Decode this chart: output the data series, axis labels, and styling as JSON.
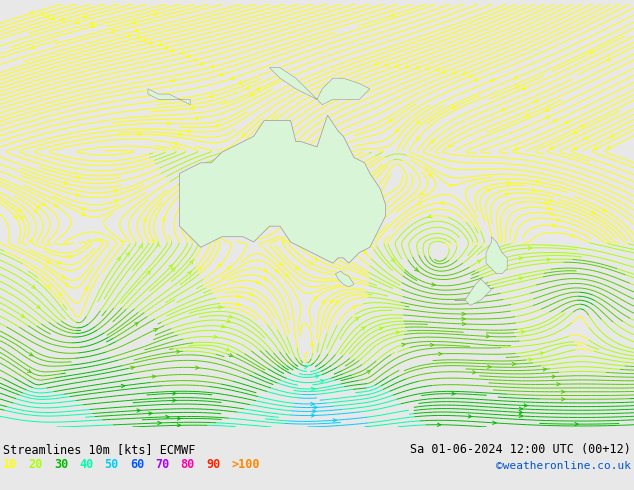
{
  "title_left": "Streamlines 10m [kts] ECMWF",
  "title_right": "Sa 01-06-2024 12:00 UTC (00+12)",
  "watermark": "©weatheronline.co.uk",
  "legend_values": [
    "10",
    "20",
    "30",
    "40",
    "50",
    "60",
    "70",
    "80",
    "90",
    ">100"
  ],
  "legend_colors": [
    "#ffff00",
    "#aaff00",
    "#00bb00",
    "#00ffaa",
    "#00ccff",
    "#0055ff",
    "#aa00ff",
    "#ff00aa",
    "#ff2200",
    "#ff8800"
  ],
  "background_color": "#d8dfe8",
  "land_color": "#d8f5d8",
  "coast_color": "#999999",
  "figsize": [
    6.34,
    4.9
  ],
  "dpi": 100,
  "extent": [
    80,
    200,
    -70,
    10
  ],
  "colormap_colors": [
    "#ffff00",
    "#aaff00",
    "#55cc00",
    "#00bb00",
    "#00ffaa",
    "#00ccff",
    "#0055ff",
    "#aa00ff",
    "#ff00aa",
    "#ff2200",
    "#ff8800"
  ],
  "speed_levels": [
    0,
    10,
    20,
    30,
    40,
    50,
    60,
    70,
    80,
    90,
    100,
    200
  ]
}
